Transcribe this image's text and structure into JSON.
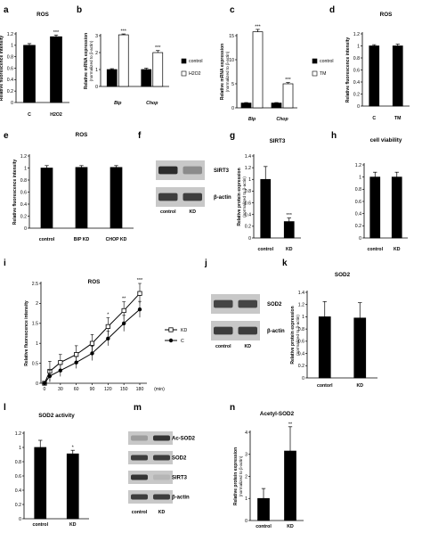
{
  "chart_data": [
    {
      "letter": "a",
      "type": "bar",
      "title": "ROS",
      "ylabel": "Relative fluorescence intensity",
      "categories": [
        "C",
        "H2O2"
      ],
      "series": [
        {
          "values": [
            1.0,
            1.15
          ],
          "errors": [
            0.03,
            0.03
          ],
          "colors": [
            "#000000",
            "#000000"
          ]
        }
      ],
      "ylim": [
        0,
        1.2
      ],
      "yticks": [
        "0",
        "0.2",
        "0.4",
        "0.6",
        "0.8",
        "1",
        "1.2"
      ],
      "significance": [
        "",
        "***"
      ]
    },
    {
      "letter": "b",
      "type": "bar",
      "title": "",
      "ylabel": "Relative mRNA expression (normalized to β-actin)",
      "categories": [
        "Bip",
        "Chop"
      ],
      "series": [
        {
          "name": "control",
          "values": [
            1.0,
            1.0
          ],
          "errors": [
            0.05,
            0.08
          ],
          "fill": "#000000"
        },
        {
          "name": "H2O2",
          "values": [
            3.05,
            2.0
          ],
          "errors": [
            0.05,
            0.12
          ],
          "fill": "#ffffff"
        }
      ],
      "ylim": [
        0,
        3
      ],
      "yticks": [
        "0",
        "1",
        "2",
        "3"
      ],
      "significance": [
        "***",
        "***"
      ]
    },
    {
      "letter": "c",
      "type": "bar",
      "title": "",
      "ylabel": "Relative mRNA expression (normalized to β-actin)",
      "categories": [
        "Bip",
        "Chop"
      ],
      "series": [
        {
          "name": "control",
          "values": [
            1.0,
            1.0
          ],
          "errors": [
            0.1,
            0.1
          ],
          "fill": "#000000"
        },
        {
          "name": "TM",
          "values": [
            15.8,
            5.0
          ],
          "errors": [
            0.5,
            0.25
          ],
          "fill": "#ffffff"
        }
      ],
      "ylim": [
        0,
        15
      ],
      "yticks": [
        "0",
        "5",
        "10",
        "15"
      ],
      "significance": [
        "***",
        "***"
      ]
    },
    {
      "letter": "d",
      "type": "bar",
      "title": "ROS",
      "ylabel": "Relative fluorescence intensity",
      "categories": [
        "C",
        "TM"
      ],
      "series": [
        {
          "values": [
            1.0,
            1.0
          ],
          "errors": [
            0.02,
            0.03
          ],
          "colors": [
            "#000000",
            "#000000"
          ]
        }
      ],
      "ylim": [
        0,
        1.2
      ],
      "yticks": [
        "0",
        "0.2",
        "0.4",
        "0.6",
        "0.8",
        "1",
        "1.2"
      ],
      "significance": [
        "",
        ""
      ]
    },
    {
      "letter": "e",
      "type": "bar",
      "title": "ROS",
      "ylabel": "Relative fluorescence intensity",
      "categories": [
        "control",
        "BIP KD",
        "CHOP KD"
      ],
      "series": [
        {
          "values": [
            1.0,
            1.01,
            1.01
          ],
          "errors": [
            0.04,
            0.03,
            0.03
          ],
          "colors": [
            "#000000",
            "#000000",
            "#000000"
          ]
        }
      ],
      "ylim": [
        0,
        1.2
      ],
      "yticks": [
        "0",
        "0.2",
        "0.4",
        "0.6",
        "0.8",
        "1",
        "1.2"
      ],
      "significance": [
        "",
        "",
        ""
      ]
    },
    {
      "letter": "g",
      "type": "bar",
      "title": "SIRT3",
      "ylabel": "Relative protein expression (normalized to β-actin)",
      "categories": [
        "control",
        "KD"
      ],
      "series": [
        {
          "values": [
            1.0,
            0.28
          ],
          "errors": [
            0.22,
            0.06
          ],
          "colors": [
            "#000000",
            "#000000"
          ]
        }
      ],
      "ylim": [
        0,
        1.4
      ],
      "yticks": [
        "0",
        "0.2",
        "0.4",
        "0.6",
        "0.8",
        "1",
        "1.2",
        "1.4"
      ],
      "significance": [
        "",
        "***"
      ]
    },
    {
      "letter": "h",
      "type": "bar",
      "title": "cell viability",
      "ylabel": "",
      "categories": [
        "control",
        "KD"
      ],
      "series": [
        {
          "values": [
            1.0,
            1.0
          ],
          "errors": [
            0.08,
            0.08
          ],
          "colors": [
            "#000000",
            "#000000"
          ]
        }
      ],
      "ylim": [
        0,
        1.2
      ],
      "yticks": [
        "0",
        "0.2",
        "0.4",
        "0.6",
        "0.8",
        "1",
        "1.2"
      ],
      "significance": [
        "",
        ""
      ]
    },
    {
      "letter": "i",
      "type": "line",
      "title": "ROS",
      "ylabel": "Relative fluorescence intensity",
      "x": [
        0,
        10,
        30,
        60,
        90,
        120,
        150,
        180
      ],
      "xticks": [
        "0",
        "30",
        "60",
        "90",
        "120",
        "150",
        "180"
      ],
      "xunit": "(min)",
      "series": [
        {
          "name": "KD",
          "marker": "open-square",
          "values": [
            0.0,
            0.3,
            0.52,
            0.72,
            1.0,
            1.42,
            1.82,
            2.25
          ],
          "errors": [
            0.0,
            0.25,
            0.2,
            0.22,
            0.22,
            0.22,
            0.22,
            0.25
          ]
        },
        {
          "name": "C",
          "marker": "filled-circle",
          "values": [
            0.0,
            0.18,
            0.32,
            0.52,
            0.75,
            1.12,
            1.5,
            1.85
          ],
          "errors": [
            0.0,
            0.15,
            0.15,
            0.15,
            0.18,
            0.18,
            0.2,
            0.2
          ]
        }
      ],
      "ylim": [
        0,
        2.5
      ],
      "yticks": [
        "0",
        "0.5",
        "1",
        "1.5",
        "2",
        "2.5"
      ],
      "significance": [
        "",
        "",
        "",
        "",
        "",
        "*",
        "**",
        "***"
      ]
    },
    {
      "letter": "k",
      "type": "bar",
      "title": "SOD2",
      "ylabel": "Relative protein expression (normalized to β-actin)",
      "categories": [
        "contorl",
        "KD"
      ],
      "series": [
        {
          "values": [
            1.0,
            0.98
          ],
          "errors": [
            0.25,
            0.25
          ],
          "colors": [
            "#000000",
            "#000000"
          ]
        }
      ],
      "ylim": [
        0,
        1.4
      ],
      "yticks": [
        "0",
        "0.2",
        "0.4",
        "0.6",
        "0.8",
        "1",
        "1.2",
        "1.4"
      ],
      "significance": [
        "",
        ""
      ]
    },
    {
      "letter": "l",
      "type": "bar",
      "title": "SOD2 activity",
      "ylabel": "",
      "categories": [
        "control",
        "KD"
      ],
      "series": [
        {
          "values": [
            1.0,
            0.91
          ],
          "errors": [
            0.1,
            0.05
          ],
          "colors": [
            "#000000",
            "#000000"
          ]
        }
      ],
      "ylim": [
        0,
        1.2
      ],
      "yticks": [
        "0",
        "0.2",
        "0.4",
        "0.6",
        "0.8",
        "1",
        "1.2"
      ],
      "significance": [
        "",
        "*"
      ]
    },
    {
      "letter": "n",
      "type": "bar",
      "title": "Acetyl-SOD2",
      "ylabel": "Relative protein expression (normalized to β-actin)",
      "categories": [
        "control",
        "KD"
      ],
      "series": [
        {
          "values": [
            1.0,
            3.15
          ],
          "errors": [
            0.45,
            1.1
          ],
          "colors": [
            "#000000",
            "#000000"
          ]
        }
      ],
      "ylim": [
        0,
        4
      ],
      "yticks": [
        "0",
        "1",
        "2",
        "3",
        "4"
      ],
      "significance": [
        "",
        "**"
      ]
    }
  ],
  "blots": [
    {
      "letter": "f",
      "bands": [
        {
          "label": "SIRT3",
          "intensity": [
            0.9,
            0.35
          ]
        },
        {
          "label": "β-actin",
          "intensity": [
            0.8,
            0.8
          ]
        }
      ],
      "lanes": [
        "control",
        "KD"
      ]
    },
    {
      "letter": "j",
      "bands": [
        {
          "label": "SOD2",
          "intensity": [
            0.75,
            0.75
          ]
        },
        {
          "label": "β-actin",
          "intensity": [
            0.8,
            0.8
          ]
        }
      ],
      "lanes": [
        "control",
        "KD"
      ]
    },
    {
      "letter": "m",
      "bands": [
        {
          "label": "Ac-SOD2",
          "intensity": [
            0.25,
            0.85
          ]
        },
        {
          "label": "SOD2",
          "intensity": [
            0.8,
            0.8
          ]
        },
        {
          "label": "SIRT3",
          "intensity": [
            0.85,
            0.1
          ]
        },
        {
          "label": "β-actin",
          "intensity": [
            0.8,
            0.8
          ]
        }
      ],
      "lanes": [
        "control",
        "KD"
      ]
    }
  ],
  "colors": {
    "bar": "#000000",
    "axis": "#000000",
    "blot_bg": "#c8c8c8",
    "band": "#1a1a1a"
  }
}
